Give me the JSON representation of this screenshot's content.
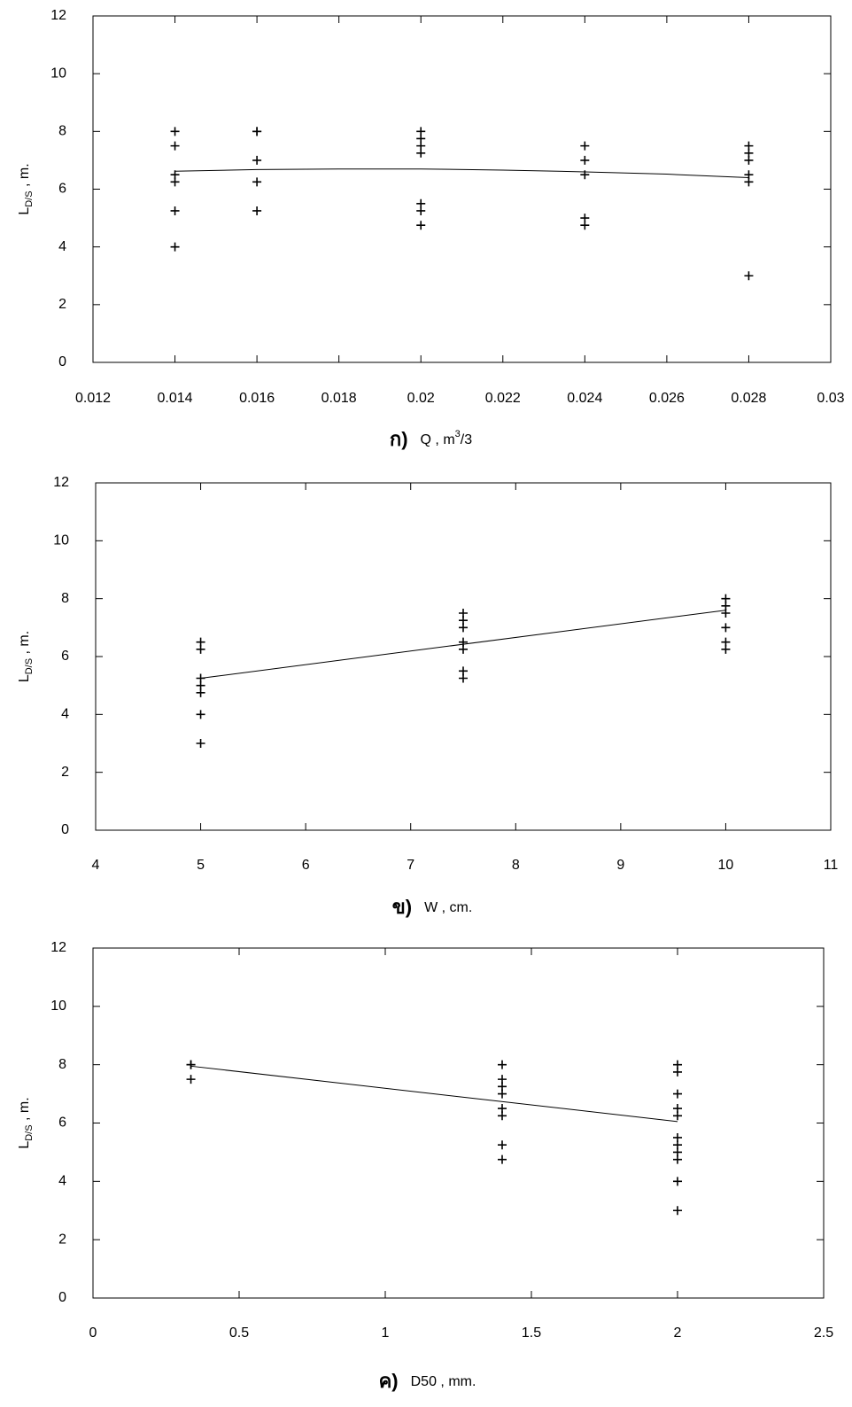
{
  "chart_data": [
    {
      "type": "scatter",
      "panel": "ก)",
      "xlabel": "Q , m",
      "xlabel_sup": "3",
      "xlabel_tail": "/3",
      "ylabel": "L",
      "ylabel_sub": "D/S",
      "ylabel_tail": " , m.",
      "xlim": [
        0.012,
        0.03
      ],
      "xticks": [
        0.012,
        0.014,
        0.016,
        0.018,
        0.02,
        0.022,
        0.024,
        0.026,
        0.028,
        0.03
      ],
      "ylim": [
        0,
        12
      ],
      "yticks": [
        0,
        2,
        4,
        6,
        8,
        10,
        12
      ],
      "color": "#000000",
      "series": [
        {
          "x": [
            0.014,
            0.014,
            0.014,
            0.014,
            0.014,
            0.014,
            0.016,
            0.016,
            0.016,
            0.016,
            0.016,
            0.02,
            0.02,
            0.02,
            0.02,
            0.02,
            0.02,
            0.02,
            0.024,
            0.024,
            0.024,
            0.024,
            0.024,
            0.028,
            0.028,
            0.028,
            0.028,
            0.028,
            0.028
          ],
          "values": [
            8,
            7.5,
            6.5,
            6.25,
            5.25,
            4,
            8,
            8,
            7,
            6.25,
            5.25,
            8,
            7.75,
            7.5,
            7.25,
            5.5,
            5.25,
            4.75,
            7.5,
            7,
            6.5,
            5,
            4.75,
            7.5,
            7.25,
            7,
            6.5,
            6.25,
            3
          ]
        },
        {
          "kind": "line",
          "x": [
            0.014,
            0.016,
            0.018,
            0.02,
            0.022,
            0.024,
            0.026,
            0.028
          ],
          "values": [
            6.62,
            6.68,
            6.7,
            6.7,
            6.66,
            6.6,
            6.52,
            6.4
          ]
        }
      ]
    },
    {
      "type": "scatter",
      "panel": "ข)",
      "xlabel": "W , cm.",
      "ylabel": "L",
      "ylabel_sub": "D/S",
      "ylabel_tail": " , m.",
      "xlim": [
        4,
        11
      ],
      "xticks": [
        4,
        5,
        6,
        7,
        8,
        9,
        10,
        11
      ],
      "ylim": [
        0,
        12
      ],
      "yticks": [
        0,
        2,
        4,
        6,
        8,
        10,
        12
      ],
      "color": "#000000",
      "series": [
        {
          "x": [
            5,
            5,
            5,
            5,
            5,
            5,
            5,
            7.5,
            7.5,
            7.5,
            7.5,
            7.5,
            7.5,
            7.5,
            10,
            10,
            10,
            10,
            10,
            10
          ],
          "values": [
            6.5,
            6.25,
            5.25,
            5,
            4.75,
            4,
            3,
            7.5,
            7.25,
            7,
            6.5,
            6.25,
            5.5,
            5.25,
            8,
            7.75,
            7.5,
            7,
            6.5,
            6.25
          ]
        },
        {
          "kind": "line",
          "x": [
            5,
            10
          ],
          "values": [
            5.25,
            7.6
          ]
        }
      ]
    },
    {
      "type": "scatter",
      "panel": "ค)",
      "xlabel": "D50 , mm.",
      "ylabel": "L",
      "ylabel_sub": "D/S",
      "ylabel_tail": " , m.",
      "xlim": [
        0,
        2.5
      ],
      "xticks": [
        0,
        0.5,
        1,
        1.5,
        2,
        2.5
      ],
      "ylim": [
        0,
        12
      ],
      "yticks": [
        0,
        2,
        4,
        6,
        8,
        10,
        12
      ],
      "color": "#000000",
      "series": [
        {
          "x": [
            0.335,
            0.335,
            0.335,
            1.4,
            1.4,
            1.4,
            1.4,
            1.4,
            1.4,
            1.4,
            1.4,
            2,
            2,
            2,
            2,
            2,
            2,
            2,
            2,
            2,
            2,
            2
          ],
          "values": [
            8,
            8,
            7.5,
            8,
            7.5,
            7.25,
            7,
            6.5,
            6.25,
            5.25,
            4.75,
            8,
            7.75,
            7,
            6.5,
            6.25,
            5.5,
            5.25,
            5,
            4.75,
            4,
            3
          ]
        },
        {
          "kind": "line",
          "x": [
            0.335,
            2
          ],
          "values": [
            7.95,
            6.05
          ]
        }
      ]
    }
  ]
}
